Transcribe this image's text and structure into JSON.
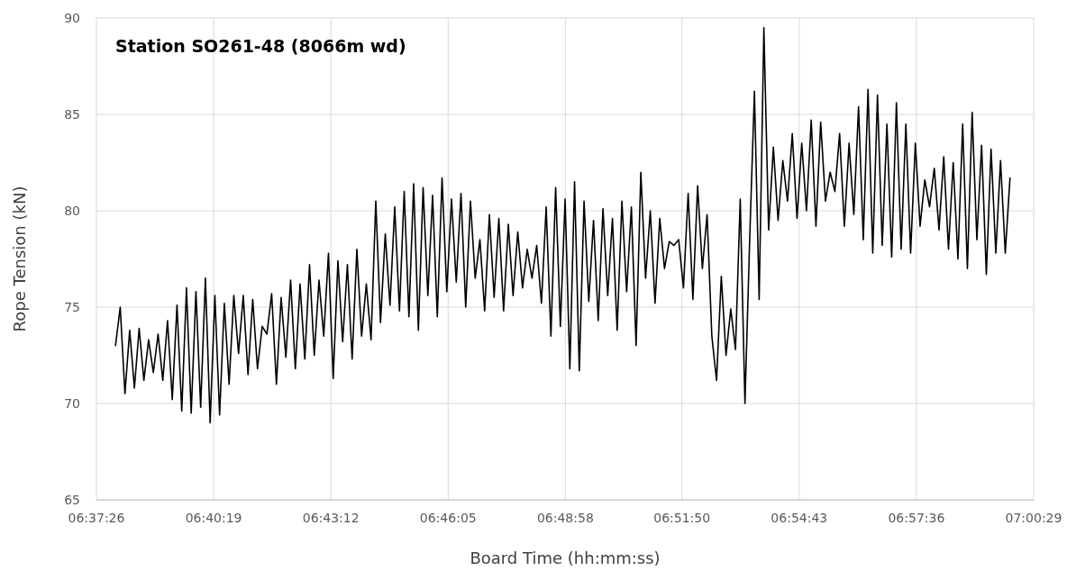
{
  "chart_data": {
    "type": "line",
    "title": "Station SO261-48 (8066m wd)",
    "xlabel": "Board Time (hh:mm:ss)",
    "ylabel": "Rope Tension (kN)",
    "x": [
      6.6317,
      6.63364,
      6.63558,
      6.63752,
      6.63946,
      6.6414,
      6.64334,
      6.64528,
      6.64722,
      6.64916,
      6.6511,
      6.65304,
      6.65498,
      6.65692,
      6.65886,
      6.6608,
      6.66274,
      6.66468,
      6.66662,
      6.66856,
      6.6705,
      6.67244,
      6.67438,
      6.67632,
      6.67826,
      6.6802,
      6.68214,
      6.68408,
      6.68602,
      6.68796,
      6.6899,
      6.69184,
      6.69378,
      6.69572,
      6.69766,
      6.6996,
      6.70154,
      6.70348,
      6.70542,
      6.70736,
      6.7093,
      6.71124,
      6.71318,
      6.71512,
      6.71706,
      6.719,
      6.72094,
      6.72288,
      6.72482,
      6.72676,
      6.7287,
      6.73064,
      6.73258,
      6.73452,
      6.73646,
      6.7384,
      6.74034,
      6.74228,
      6.74422,
      6.74616,
      6.7481,
      6.75004,
      6.75198,
      6.75392,
      6.75586,
      6.7578,
      6.75974,
      6.76168,
      6.76362,
      6.76556,
      6.7675,
      6.76944,
      6.77138,
      6.77332,
      6.77526,
      6.7772,
      6.77914,
      6.78108,
      6.78302,
      6.78496,
      6.7869,
      6.78884,
      6.79078,
      6.79272,
      6.79466,
      6.7966,
      6.79854,
      6.80048,
      6.80242,
      6.80436,
      6.8063,
      6.80824,
      6.81018,
      6.81212,
      6.81406,
      6.816,
      6.81794,
      6.81988,
      6.82182,
      6.82376,
      6.8257,
      6.82764,
      6.82958,
      6.83152,
      6.83346,
      6.8354,
      6.83734,
      6.83928,
      6.84122,
      6.84316,
      6.8451,
      6.84704,
      6.84898,
      6.85092,
      6.85286,
      6.8548,
      6.85674,
      6.85868,
      6.86062,
      6.86256,
      6.8645,
      6.86644,
      6.86838,
      6.87032,
      6.87226,
      6.8742,
      6.87614,
      6.87808,
      6.88002,
      6.88196,
      6.8839,
      6.88584,
      6.88778,
      6.88972,
      6.89166,
      6.8936,
      6.89554,
      6.89748,
      6.89942,
      6.90136,
      6.9033,
      6.90524,
      6.90718,
      6.90912,
      6.91106,
      6.913,
      6.91494,
      6.91688,
      6.91882,
      6.92076,
      6.9227,
      6.92464,
      6.92658,
      6.92852,
      6.93046,
      6.9324,
      6.93434,
      6.93628,
      6.93822,
      6.94016,
      6.9421,
      6.94404,
      6.94598,
      6.94792,
      6.94986,
      6.9518,
      6.95374,
      6.95568,
      6.95762,
      6.95956,
      6.9615,
      6.96344,
      6.96538,
      6.96732,
      6.96926,
      6.9712,
      6.97314,
      6.97508,
      6.97702,
      6.97896,
      6.9809,
      6.98284,
      6.98478,
      6.98672,
      6.98866,
      6.9906,
      6.99254,
      6.99448,
      6.99642,
      6.99836
    ],
    "series": [
      {
        "color": "#000000",
        "values": [
          73,
          75,
          70.5,
          73.8,
          70.8,
          73.9,
          71.2,
          73.3,
          71.6,
          73.6,
          71.2,
          74.3,
          70.2,
          75.1,
          69.6,
          76,
          69.5,
          75.8,
          69.8,
          76.5,
          69,
          75.6,
          69.4,
          75.2,
          71,
          75.6,
          72.6,
          75.6,
          71.5,
          75.4,
          71.8,
          74,
          73.6,
          75.7,
          71,
          75.5,
          72.4,
          76.4,
          71.8,
          76.2,
          72.3,
          77.2,
          72.5,
          76.4,
          73.5,
          77.8,
          71.3,
          77.4,
          73.2,
          77.2,
          72.3,
          78,
          73.5,
          76.2,
          73.3,
          80.5,
          74.2,
          78.8,
          75.1,
          80.2,
          74.8,
          81,
          74.5,
          81.4,
          73.8,
          81.2,
          75.6,
          80.8,
          74.5,
          81.7,
          75.8,
          80.6,
          76.3,
          80.9,
          75,
          80.5,
          76.5,
          78.5,
          74.8,
          79.8,
          75.5,
          79.6,
          74.8,
          79.3,
          75.6,
          78.9,
          76,
          78,
          76.5,
          78.2,
          75.2,
          80.2,
          73.5,
          81.2,
          74,
          80.6,
          71.8,
          81.5,
          71.7,
          80.5,
          75.3,
          79.5,
          74.3,
          80.1,
          75.6,
          79.6,
          73.8,
          80.5,
          75.8,
          80.2,
          73,
          82,
          76.5,
          80,
          75.2,
          79.6,
          77,
          78.4,
          78.2,
          78.5,
          76,
          80.9,
          75.4,
          81.3,
          77,
          79.8,
          73.5,
          71.2,
          76.6,
          72.5,
          74.9,
          72.8,
          80.6,
          70,
          78.5,
          86.2,
          75.4,
          89.5,
          79,
          83.3,
          79.5,
          82.6,
          80.5,
          84,
          79.6,
          83.5,
          80,
          84.7,
          79.2,
          84.6,
          80.5,
          82,
          81,
          84,
          79.2,
          83.5,
          79.8,
          85.4,
          78.5,
          86.3,
          77.8,
          86,
          78.2,
          84.5,
          77.6,
          85.6,
          78,
          84.5,
          77.8,
          83.5,
          79.2,
          81.6,
          80.2,
          82.2,
          79,
          82.8,
          78,
          82.5,
          77.5,
          84.5,
          77,
          85.1,
          78.5,
          83.4,
          76.7,
          83.2,
          77.8,
          82.6,
          77.8,
          81.7
        ]
      }
    ],
    "xlim": [
      6.623889,
      7.008056
    ],
    "xticks": [
      {
        "value": 6.623889,
        "label": "06:37:26"
      },
      {
        "value": 6.671944,
        "label": "06:40:19"
      },
      {
        "value": 6.72,
        "label": "06:43:12"
      },
      {
        "value": 6.768056,
        "label": "06:46:05"
      },
      {
        "value": 6.816111,
        "label": "06:48:58"
      },
      {
        "value": 6.863889,
        "label": "06:51:50"
      },
      {
        "value": 6.911944,
        "label": "06:54:43"
      },
      {
        "value": 6.96,
        "label": "06:57:36"
      },
      {
        "value": 7.008056,
        "label": "07:00:29"
      }
    ],
    "ylim": [
      65,
      90
    ],
    "yticks": [
      65,
      70,
      75,
      80,
      85,
      90
    ],
    "grid": true,
    "marker": "none",
    "line_style": "solid"
  }
}
